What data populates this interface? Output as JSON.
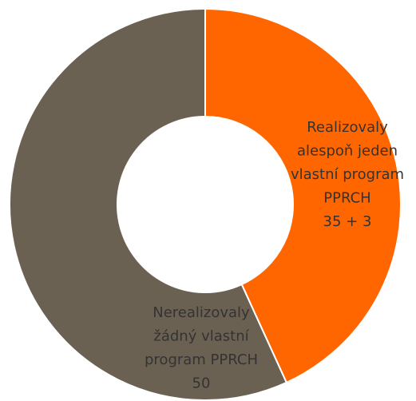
{
  "chart_data": {
    "type": "donut",
    "categories": [
      "Realizovaly alespoň jeden vlastní program PPRCH",
      "Nerealizovaly žádný vlastní program PPRCH"
    ],
    "values": [
      38,
      50
    ],
    "value_labels": [
      "35 + 3",
      "50"
    ],
    "colors": [
      "#ff6600",
      "#6b6153"
    ]
  }
}
